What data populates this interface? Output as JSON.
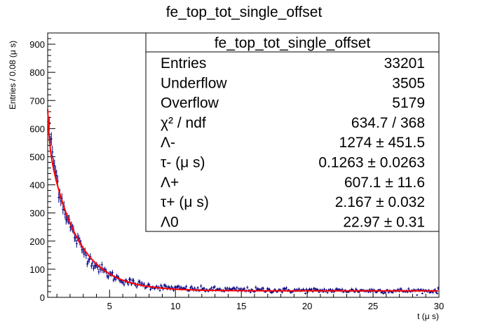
{
  "chart_data": {
    "type": "scatter",
    "title": "fe_top_tot_single_offset",
    "xlabel": "t (μ s)",
    "ylabel": "Entries / 0.08 (μ s)",
    "xlim": [
      0.3,
      30
    ],
    "ylim": [
      0,
      940
    ],
    "xticks": [
      5,
      10,
      15,
      20,
      25,
      30
    ],
    "yticks": [
      0,
      100,
      200,
      300,
      400,
      500,
      600,
      700,
      800,
      900
    ],
    "bin_width": 0.08,
    "series": [
      {
        "style": "histogram points with error bars",
        "color": "#000080",
        "x": [
          0.3,
          0.5,
          0.75,
          1.0,
          1.25,
          1.5,
          1.75,
          2.0,
          2.5,
          3.0,
          3.5,
          4.0,
          4.5,
          5.0,
          5.5,
          6.0,
          7.0,
          8.0,
          9.0,
          10.0,
          12.0,
          14.0,
          16.0,
          18.0,
          20.0,
          22.0,
          24.0,
          26.0,
          28.0,
          30.0
        ],
        "y": [
          650,
          560,
          480,
          420,
          370,
          325,
          290,
          255,
          205,
          165,
          135,
          112,
          95,
          80,
          70,
          60,
          48,
          40,
          35,
          32,
          28,
          27,
          26,
          25,
          24,
          24,
          24,
          23,
          23,
          23
        ]
      },
      {
        "style": "fit curve",
        "color": "#ff0000",
        "function": "Lambda_minus*exp(-t/tau_minus) + Lambda_plus*exp(-t/tau_plus) + Lambda_0",
        "x": [
          0.3,
          0.5,
          0.75,
          1.0,
          1.5,
          2.0,
          3.0,
          4.0,
          5.0,
          6.0,
          8.0,
          10.0,
          15.0,
          20.0,
          25.0,
          30.0
        ],
        "y": [
          671.7,
          539.8,
          481.0,
          452.4,
          396.9,
          315.8,
          199.7,
          128.6,
          85.0,
          58.4,
          34.0,
          25.7,
          23.0,
          23.0,
          23.0,
          23.0
        ]
      }
    ],
    "stats_box": {
      "title": "fe_top_tot_single_offset",
      "rows": [
        {
          "label": "Entries",
          "value": "33201"
        },
        {
          "label": "Underflow",
          "value": "3505"
        },
        {
          "label": "Overflow",
          "value": "5179"
        },
        {
          "label": "χ² / ndf",
          "value": "634.7 / 368"
        },
        {
          "label": "Λ-",
          "value": "1274 ± 451.5"
        },
        {
          "label": "τ- (μ s)",
          "value": "0.1263 ± 0.0263"
        },
        {
          "label": "Λ+",
          "value": "607.1 ± 11.6"
        },
        {
          "label": "τ+ (μ s)",
          "value": "2.167 ± 0.032"
        },
        {
          "label": "Λ0",
          "value": "22.97 ± 0.31"
        }
      ]
    },
    "fit_params": {
      "Lambda_minus": 1274,
      "tau_minus": 0.1263,
      "Lambda_plus": 607.1,
      "tau_plus": 2.167,
      "Lambda_0": 22.97
    }
  }
}
